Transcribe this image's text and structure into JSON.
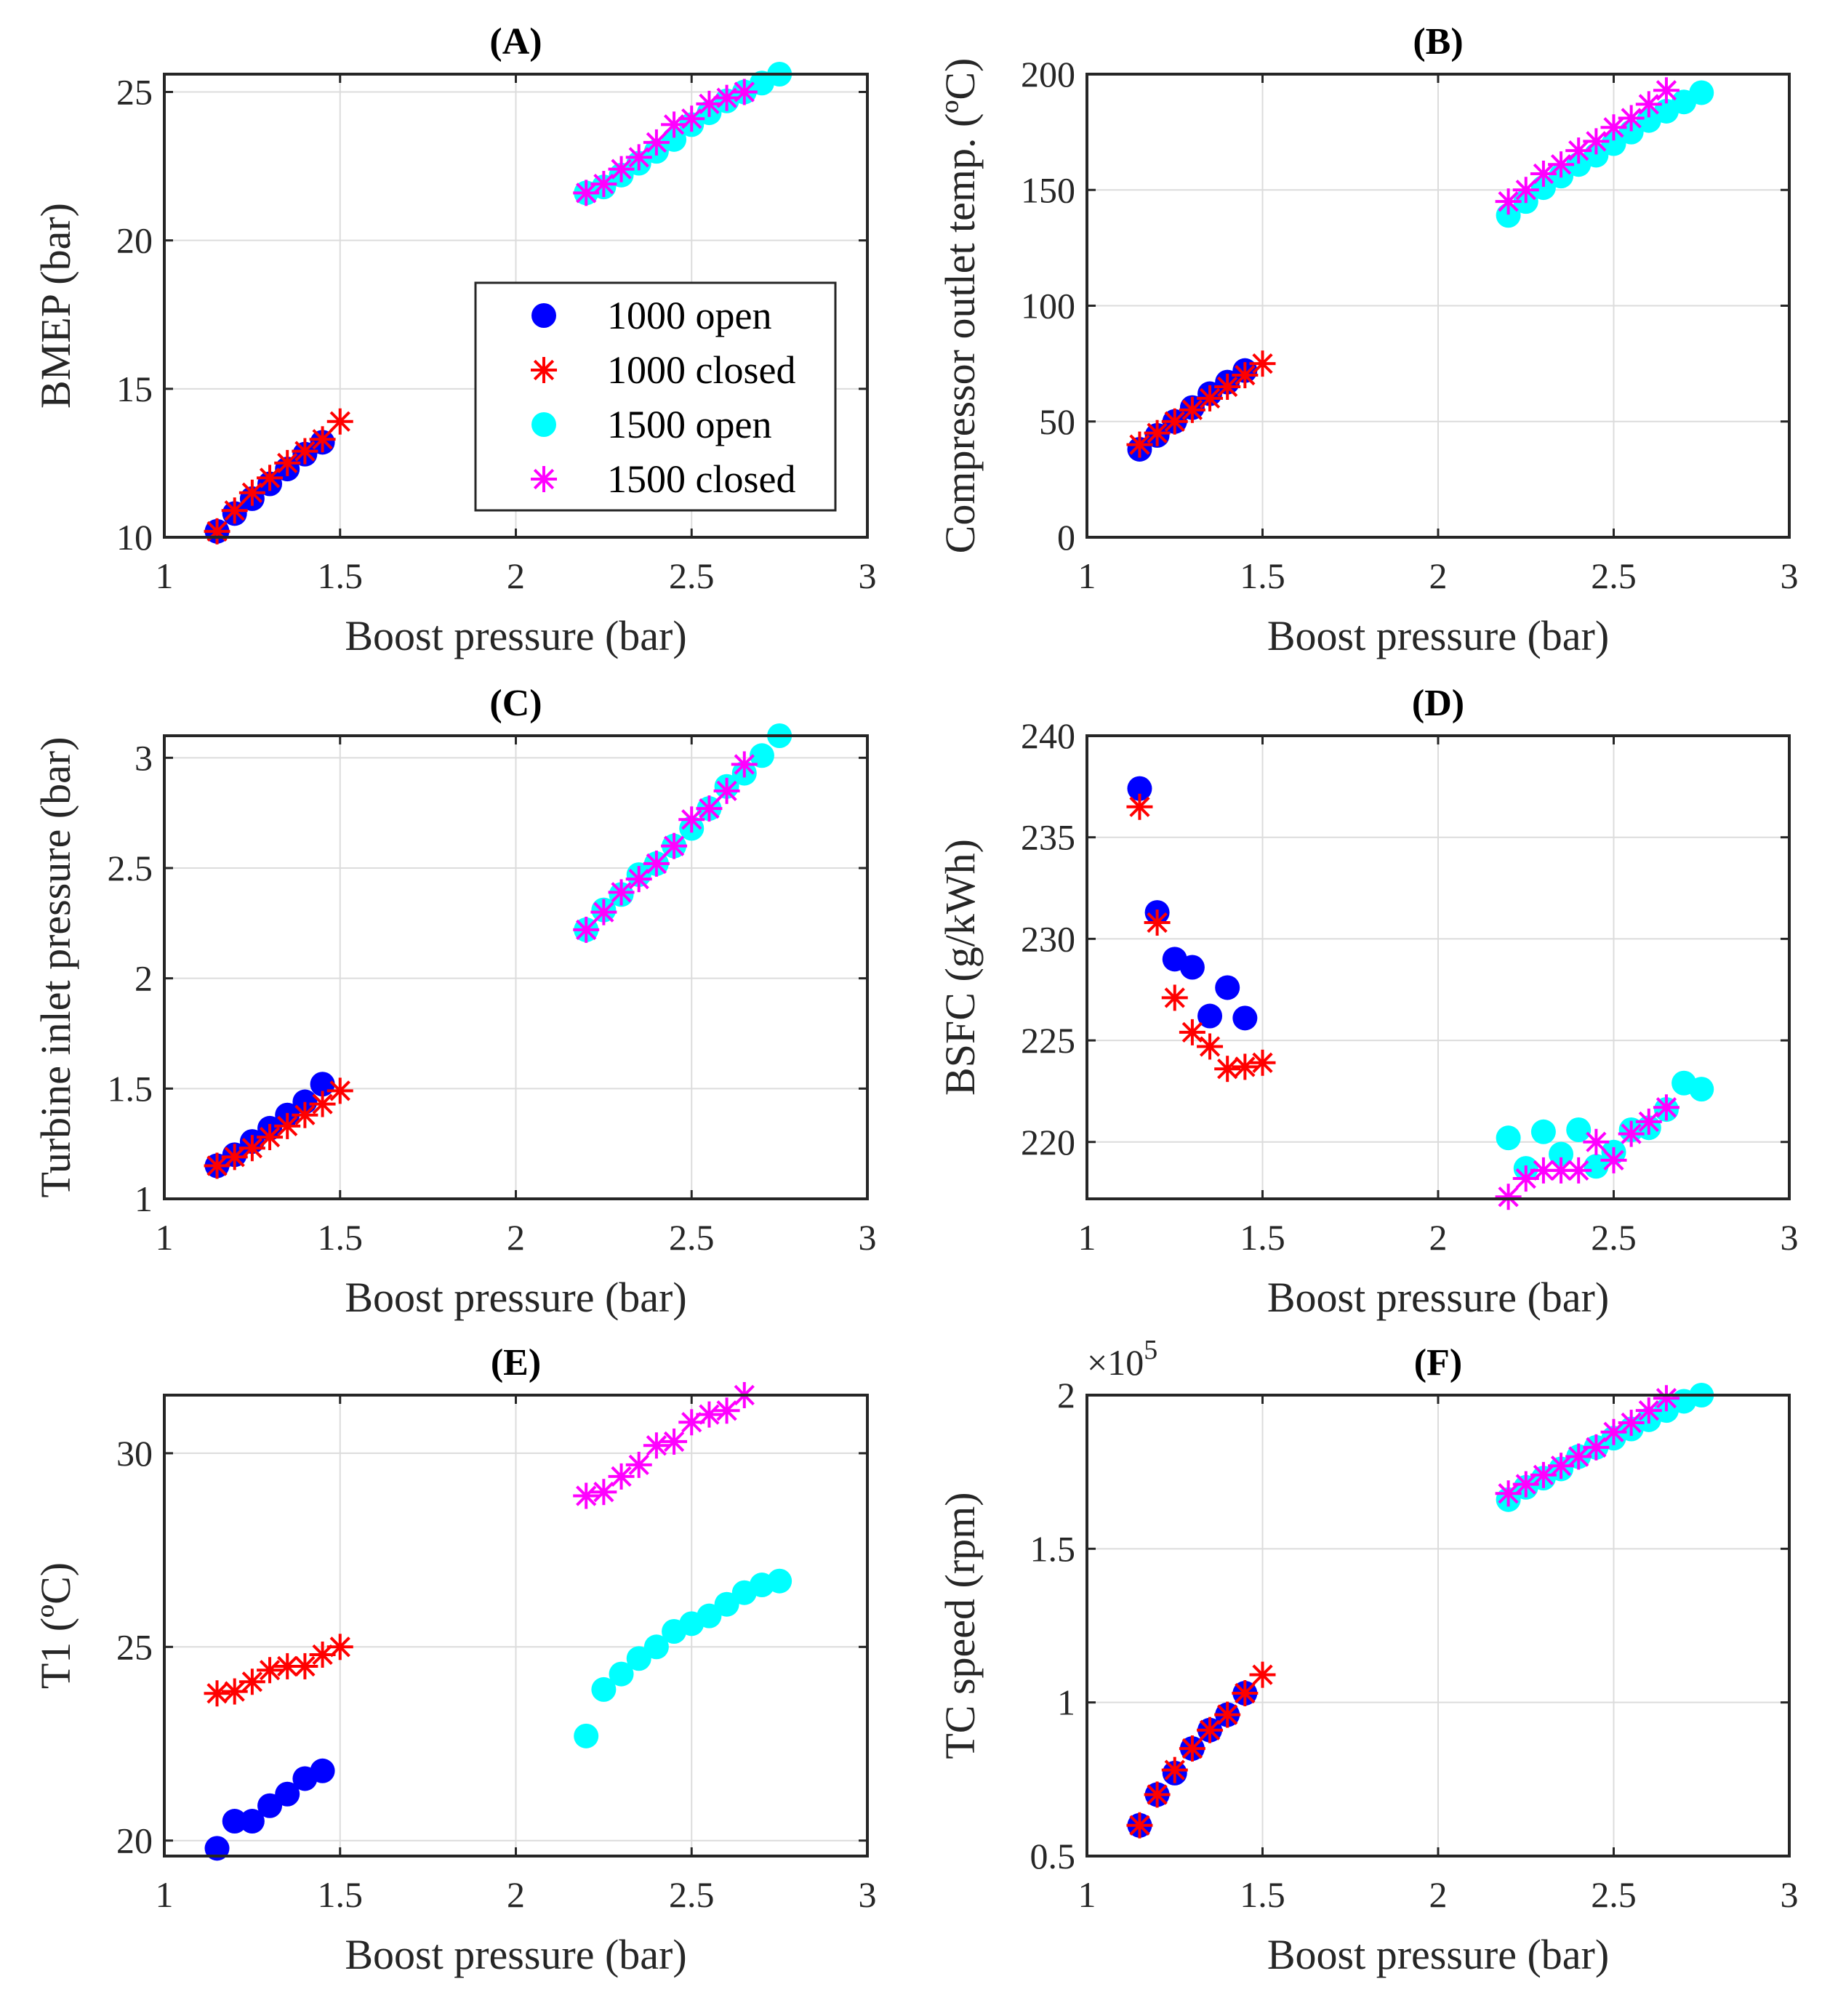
{
  "legend": {
    "placement": "inside panel A, lower-right",
    "entries": [
      "1000 open",
      "1000 closed",
      "1500 open",
      "1500 closed"
    ]
  },
  "series_style": [
    {
      "name": "1000 open",
      "marker": "circle",
      "color": "#0000ff"
    },
    {
      "name": "1000 closed",
      "marker": "asterisk",
      "color": "#ff0000"
    },
    {
      "name": "1500 open",
      "marker": "circle",
      "color": "#00ffff"
    },
    {
      "name": "1500 closed",
      "marker": "asterisk",
      "color": "#ff00ff"
    }
  ],
  "x_common": {
    "1000 open": [
      1.15,
      1.2,
      1.25,
      1.3,
      1.35,
      1.4,
      1.45
    ],
    "1000 closed": [
      1.15,
      1.2,
      1.25,
      1.3,
      1.35,
      1.4,
      1.45,
      1.5
    ],
    "1500 open": [
      2.2,
      2.25,
      2.3,
      2.35,
      2.4,
      2.45,
      2.5,
      2.55,
      2.6,
      2.65,
      2.7,
      2.75
    ],
    "1500 closed": [
      2.2,
      2.25,
      2.3,
      2.35,
      2.4,
      2.45,
      2.5,
      2.55,
      2.6,
      2.65
    ]
  },
  "chart_data": [
    {
      "type": "scatter",
      "title": "(A)",
      "xlabel": "Boost pressure (bar)",
      "ylabel": "BMEP (bar)",
      "xlim": [
        1,
        3
      ],
      "ylim": [
        10,
        25.6
      ],
      "xticks": [
        "1",
        "1.5",
        "2",
        "2.5",
        "3"
      ],
      "yticks": [
        "10",
        "15",
        "20",
        "25"
      ],
      "grid": true,
      "series": [
        {
          "name": "1000 open",
          "values": [
            10.2,
            10.8,
            11.3,
            11.8,
            12.3,
            12.8,
            13.2
          ]
        },
        {
          "name": "1000 closed",
          "values": [
            10.2,
            10.9,
            11.5,
            12.0,
            12.5,
            12.9,
            13.3,
            13.9
          ]
        },
        {
          "name": "1500 open",
          "values": [
            21.6,
            21.8,
            22.2,
            22.6,
            23.0,
            23.4,
            23.9,
            24.3,
            24.7,
            25.0,
            25.3,
            25.6
          ]
        },
        {
          "name": "1500 closed",
          "values": [
            21.6,
            21.9,
            22.4,
            22.8,
            23.3,
            23.9,
            24.1,
            24.6,
            24.8,
            25.0
          ]
        }
      ]
    },
    {
      "type": "scatter",
      "title": "(B)",
      "xlabel": "Boost pressure (bar)",
      "ylabel": "Compressor outlet temp. (ºC)",
      "xlim": [
        1,
        3
      ],
      "ylim": [
        0,
        200
      ],
      "xticks": [
        "1",
        "1.5",
        "2",
        "2.5",
        "3"
      ],
      "yticks": [
        "0",
        "50",
        "100",
        "150",
        "200"
      ],
      "grid": true,
      "series": [
        {
          "name": "1000 open",
          "values": [
            38,
            44,
            50,
            56,
            62,
            67,
            72
          ]
        },
        {
          "name": "1000 closed",
          "values": [
            40,
            45,
            50,
            55,
            60,
            65,
            70,
            75
          ]
        },
        {
          "name": "1500 open",
          "values": [
            139,
            145,
            151,
            156,
            161,
            165,
            170,
            175,
            180,
            184,
            188,
            192
          ]
        },
        {
          "name": "1500 closed",
          "values": [
            145,
            150,
            157,
            161,
            167,
            171,
            177,
            181,
            187,
            193
          ]
        }
      ]
    },
    {
      "type": "scatter",
      "title": "(C)",
      "xlabel": "Boost pressure (bar)",
      "ylabel": "Turbine inlet pressure (bar)",
      "xlim": [
        1,
        3
      ],
      "ylim": [
        1,
        3.1
      ],
      "xticks": [
        "1",
        "1.5",
        "2",
        "2.5",
        "3"
      ],
      "yticks": [
        "1",
        "1.5",
        "2",
        "2.5",
        "3"
      ],
      "grid": true,
      "series": [
        {
          "name": "1000 open",
          "values": [
            1.15,
            1.2,
            1.26,
            1.32,
            1.38,
            1.44,
            1.52
          ]
        },
        {
          "name": "1000 closed",
          "values": [
            1.15,
            1.19,
            1.23,
            1.28,
            1.33,
            1.38,
            1.43,
            1.49
          ]
        },
        {
          "name": "1500 open",
          "values": [
            2.22,
            2.31,
            2.38,
            2.47,
            2.52,
            2.6,
            2.68,
            2.77,
            2.87,
            2.93,
            3.01,
            3.1
          ]
        },
        {
          "name": "1500 closed",
          "values": [
            2.22,
            2.3,
            2.39,
            2.45,
            2.52,
            2.6,
            2.72,
            2.77,
            2.85,
            2.97
          ]
        }
      ]
    },
    {
      "type": "scatter",
      "title": "(D)",
      "xlabel": "Boost pressure (bar)",
      "ylabel": "BSFC (g/kWh)",
      "xlim": [
        1,
        3
      ],
      "ylim": [
        217.2,
        240
      ],
      "xticks": [
        "1",
        "1.5",
        "2",
        "2.5",
        "3"
      ],
      "yticks": [
        "220",
        "225",
        "230",
        "235",
        "240"
      ],
      "grid": true,
      "series": [
        {
          "name": "1000 open",
          "values": [
            237.4,
            231.3,
            229.0,
            228.6,
            226.2,
            227.6,
            226.1
          ]
        },
        {
          "name": "1000 closed",
          "values": [
            236.5,
            230.8,
            227.1,
            225.4,
            224.7,
            223.6,
            223.7,
            223.9
          ]
        },
        {
          "name": "1500 open",
          "values": [
            220.2,
            218.7,
            220.5,
            219.4,
            220.6,
            218.8,
            219.5,
            220.6,
            220.7,
            221.6,
            222.9,
            222.6
          ]
        },
        {
          "name": "1500 closed",
          "values": [
            217.3,
            218.2,
            218.6,
            218.6,
            218.6,
            220.0,
            219.1,
            220.4,
            221.0,
            221.7
          ]
        }
      ]
    },
    {
      "type": "scatter",
      "title": "(E)",
      "xlabel": "Boost pressure (bar)",
      "ylabel": "T1 (ºC)",
      "xlim": [
        1,
        3
      ],
      "ylim": [
        19.6,
        31.5
      ],
      "xticks": [
        "1",
        "1.5",
        "2",
        "2.5",
        "3"
      ],
      "yticks": [
        "20",
        "25",
        "30"
      ],
      "grid": true,
      "series": [
        {
          "name": "1000 open",
          "values": [
            19.8,
            20.5,
            20.5,
            20.9,
            21.2,
            21.6,
            21.8
          ]
        },
        {
          "name": "1000 closed",
          "values": [
            23.8,
            23.85,
            24.1,
            24.4,
            24.5,
            24.5,
            24.8,
            25.0
          ]
        },
        {
          "name": "1500 open",
          "values": [
            22.7,
            23.9,
            24.3,
            24.7,
            25.0,
            25.4,
            25.6,
            25.8,
            26.1,
            26.4,
            26.6,
            26.7
          ]
        },
        {
          "name": "1500 closed",
          "values": [
            28.9,
            29.0,
            29.4,
            29.7,
            30.2,
            30.3,
            30.8,
            31.0,
            31.1,
            31.5
          ]
        }
      ]
    },
    {
      "type": "scatter",
      "title": "(F)",
      "xlabel": "Boost pressure (bar)",
      "ylabel": "TC speed (rpm)",
      "exponent_base": "×10",
      "exponent_power": "5",
      "xlim": [
        1,
        3
      ],
      "ylim": [
        0.5,
        2
      ],
      "xticks": [
        "1",
        "1.5",
        "2",
        "2.5",
        "3"
      ],
      "yticks": [
        "0.5",
        "1",
        "1.5",
        "2"
      ],
      "grid": true,
      "series": [
        {
          "name": "1000 open",
          "values": [
            0.6,
            0.7,
            0.77,
            0.85,
            0.91,
            0.96,
            1.03
          ]
        },
        {
          "name": "1000 closed",
          "values": [
            0.6,
            0.7,
            0.78,
            0.85,
            0.91,
            0.96,
            1.03,
            1.09
          ]
        },
        {
          "name": "1500 open",
          "values": [
            1.66,
            1.7,
            1.73,
            1.76,
            1.8,
            1.83,
            1.86,
            1.89,
            1.92,
            1.95,
            1.98,
            2.0
          ]
        },
        {
          "name": "1500 closed",
          "values": [
            1.68,
            1.71,
            1.74,
            1.77,
            1.8,
            1.83,
            1.88,
            1.91,
            1.95,
            1.99
          ]
        }
      ]
    }
  ]
}
